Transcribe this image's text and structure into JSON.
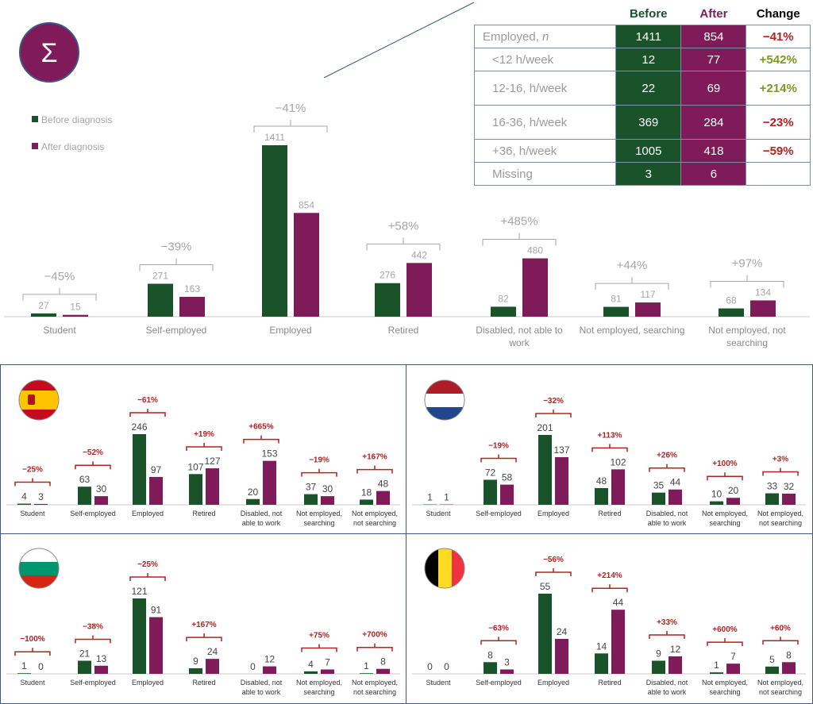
{
  "colors": {
    "before": "#1a5229",
    "after": "#7f1b58",
    "change_neg": "#b22222",
    "change_pos": "#7a9a1a",
    "muted": "#a6a6a6",
    "border": "#3f5687"
  },
  "main": {
    "icon": "sigma-icon",
    "icon_glyph": "Σ",
    "legend": {
      "before": "Before diagnosis",
      "after": "After diagnosis"
    },
    "table": {
      "headers": {
        "before": "Before",
        "after": "After",
        "change": "Change"
      },
      "rows": [
        {
          "label": "Employed, n",
          "before": "1411",
          "after": "854",
          "change": "−41%",
          "dir": "neg"
        },
        {
          "label": "<12 h/week",
          "before": "12",
          "after": "77",
          "change": "+542%",
          "dir": "pos"
        },
        {
          "label": "12-16, h/week",
          "before": "22",
          "after": "69",
          "change": "+214%",
          "dir": "pos"
        },
        {
          "label": "16-36, h/week",
          "before": "369",
          "after": "284",
          "change": "−23%",
          "dir": "neg"
        },
        {
          "label": "+36, h/week",
          "before": "1005",
          "after": "418",
          "change": "−59%",
          "dir": "neg"
        },
        {
          "label": "Missing",
          "before": "3",
          "after": "6",
          "change": "",
          "dir": "none"
        }
      ]
    }
  },
  "chart_data": [
    {
      "type": "bar",
      "panel": "overall",
      "categories": [
        "Student",
        "Self-employed",
        "Employed",
        "Retired",
        "Disabled, not able to work",
        "Not employed, searching",
        "Not employed, not searching"
      ],
      "series": [
        {
          "name": "Before diagnosis",
          "values": [
            27,
            271,
            1411,
            276,
            82,
            81,
            68
          ]
        },
        {
          "name": "After diagnosis",
          "values": [
            15,
            163,
            854,
            442,
            480,
            117,
            134
          ]
        }
      ],
      "changes": [
        "−45%",
        "−39%",
        "−41%",
        "+58%",
        "+485%",
        "+44%",
        "+97%"
      ]
    },
    {
      "type": "bar",
      "panel": "spain",
      "icon": "spain-flag-icon",
      "categories": [
        "Student",
        "Self-employed",
        "Employed",
        "Retired",
        "Disabled, not able to work",
        "Not employed, searching",
        "Not employed, not searching"
      ],
      "series": [
        {
          "values": [
            4,
            63,
            246,
            107,
            20,
            37,
            18
          ]
        },
        {
          "values": [
            3,
            30,
            97,
            127,
            153,
            30,
            48
          ]
        }
      ],
      "changes": [
        "−25%",
        "−52%",
        "−61%",
        "+19%",
        "+665%",
        "−19%",
        "+167%"
      ]
    },
    {
      "type": "bar",
      "panel": "netherlands",
      "icon": "netherlands-flag-icon",
      "categories": [
        "Student",
        "Self-employed",
        "Employed",
        "Retired",
        "Disabled, not able to work",
        "Not employed, searching",
        "Not employed, not searching"
      ],
      "series": [
        {
          "values": [
            1,
            72,
            201,
            48,
            35,
            10,
            33
          ]
        },
        {
          "values": [
            1,
            58,
            137,
            102,
            44,
            20,
            32
          ]
        }
      ],
      "changes": [
        "",
        "−19%",
        "−32%",
        "+113%",
        "+26%",
        "+100%",
        "+3%"
      ]
    },
    {
      "type": "bar",
      "panel": "bulgaria",
      "icon": "bulgaria-flag-icon",
      "categories": [
        "Student",
        "Self-employed",
        "Employed",
        "Retired",
        "Disabled, not able to work",
        "Not employed, searching",
        "Not employed, not searching"
      ],
      "series": [
        {
          "values": [
            1,
            21,
            121,
            9,
            0,
            4,
            1
          ]
        },
        {
          "values": [
            0,
            13,
            91,
            24,
            12,
            7,
            8
          ]
        }
      ],
      "changes": [
        "−100%",
        "−38%",
        "−25%",
        "+167%",
        "",
        "+75%",
        "+700%"
      ]
    },
    {
      "type": "bar",
      "panel": "belgium",
      "icon": "belgium-flag-icon",
      "categories": [
        "Student",
        "Self-employed",
        "Employed",
        "Retired",
        "Disabled, not able to work",
        "Not employed, searching",
        "Not employed, not searching"
      ],
      "series": [
        {
          "values": [
            0,
            8,
            55,
            14,
            9,
            1,
            5
          ]
        },
        {
          "values": [
            0,
            3,
            24,
            44,
            12,
            7,
            8
          ]
        }
      ],
      "changes": [
        "",
        "−63%",
        "−56%",
        "+214%",
        "+33%",
        "+600%",
        "+60%"
      ]
    }
  ]
}
